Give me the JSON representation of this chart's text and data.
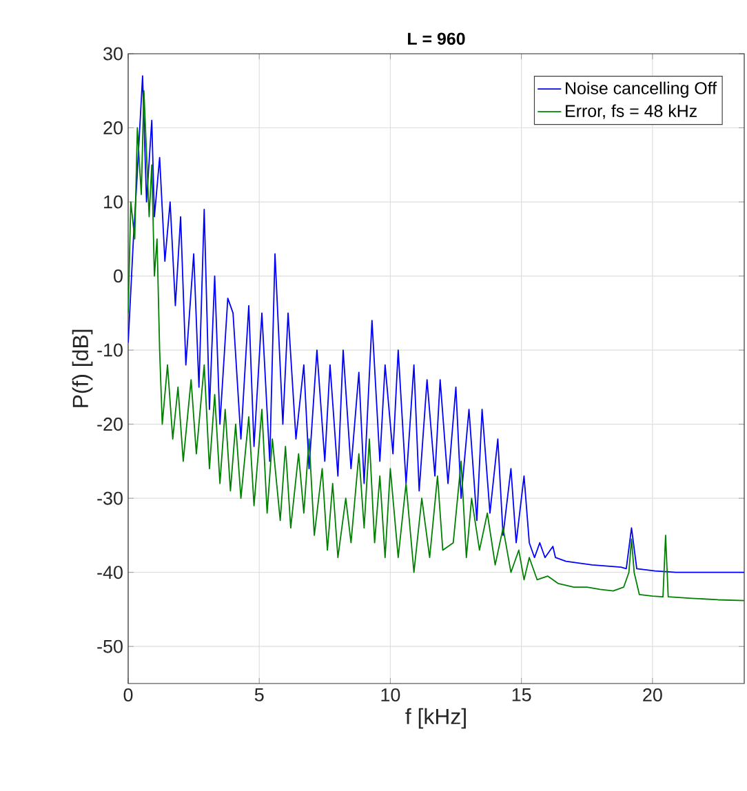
{
  "chart_data": {
    "type": "line",
    "title": "L = 960",
    "xlabel": "f [kHz]",
    "ylabel": "P(f) [dB]",
    "xlim": [
      0,
      23.5
    ],
    "ylim": [
      -55,
      30
    ],
    "xticks": [
      0,
      5,
      10,
      15,
      20
    ],
    "yticks": [
      -50,
      -40,
      -30,
      -20,
      -10,
      0,
      10,
      20,
      30
    ],
    "grid": true,
    "legend": "top right",
    "series": [
      {
        "name": "Noise cancelling Off",
        "color": "#0000ff",
        "x": [
          0,
          0.2,
          0.35,
          0.55,
          0.7,
          0.9,
          1.0,
          1.2,
          1.4,
          1.6,
          1.8,
          2.0,
          2.2,
          2.5,
          2.7,
          2.9,
          3.1,
          3.3,
          3.5,
          3.8,
          4.0,
          4.3,
          4.6,
          4.8,
          5.1,
          5.4,
          5.6,
          5.9,
          6.1,
          6.4,
          6.7,
          6.9,
          7.2,
          7.5,
          7.7,
          8.0,
          8.2,
          8.5,
          8.8,
          9.0,
          9.3,
          9.6,
          9.8,
          10.1,
          10.3,
          10.6,
          10.9,
          11.1,
          11.4,
          11.7,
          11.9,
          12.2,
          12.5,
          12.7,
          13.0,
          13.3,
          13.5,
          13.8,
          14.1,
          14.3,
          14.6,
          14.8,
          15.1,
          15.3,
          15.5,
          15.7,
          15.9,
          16.2,
          16.3,
          16.7,
          17.7,
          18.8,
          19.0,
          19.2,
          19.4,
          20.1,
          20.9,
          22.5,
          23.5
        ],
        "values": [
          -9,
          5,
          14,
          27,
          10,
          21,
          8,
          16,
          2,
          10,
          -4,
          8,
          -12,
          3,
          -15,
          9,
          -18,
          0,
          -20,
          -3,
          -5,
          -22,
          -4,
          -23,
          -5,
          -25,
          3,
          -20,
          -5,
          -22,
          -12,
          -26,
          -10,
          -25,
          -12,
          -27,
          -10,
          -26,
          -13,
          -28,
          -6,
          -25,
          -12,
          -24,
          -10,
          -28,
          -12,
          -29,
          -14,
          -27,
          -14,
          -28,
          -15,
          -30,
          -18,
          -33,
          -18,
          -32,
          -22,
          -35,
          -26,
          -36,
          -27,
          -36,
          -38,
          -36,
          -38,
          -36.5,
          -38,
          -38.5,
          -39,
          -39.3,
          -39.5,
          -34,
          -39.5,
          -39.8,
          -40,
          -40,
          -40
        ]
      },
      {
        "name": "Error, fs = 48 kHz",
        "color": "#008000",
        "x": [
          0,
          0.1,
          0.25,
          0.35,
          0.5,
          0.6,
          0.8,
          0.9,
          1.0,
          1.1,
          1.2,
          1.3,
          1.5,
          1.7,
          1.9,
          2.1,
          2.4,
          2.6,
          2.9,
          3.1,
          3.3,
          3.5,
          3.7,
          3.9,
          4.1,
          4.3,
          4.6,
          4.8,
          5.1,
          5.3,
          5.5,
          5.8,
          6.0,
          6.2,
          6.5,
          6.7,
          6.9,
          7.1,
          7.4,
          7.6,
          7.8,
          8.0,
          8.3,
          8.5,
          8.8,
          9.0,
          9.2,
          9.4,
          9.6,
          9.8,
          10.0,
          10.3,
          10.6,
          10.9,
          11.2,
          11.5,
          11.8,
          12.0,
          12.4,
          12.7,
          12.9,
          13.1,
          13.4,
          13.7,
          14.0,
          14.3,
          14.6,
          14.9,
          15.1,
          15.3,
          15.6,
          16.0,
          16.4,
          17.0,
          17.5,
          18.0,
          18.5,
          18.9,
          19.1,
          19.2,
          19.3,
          19.5,
          20.0,
          20.4,
          20.5,
          20.6,
          21.5,
          22.5,
          23.5
        ],
        "values": [
          -5,
          10,
          5,
          20,
          11,
          25,
          8,
          15,
          0,
          5,
          -10,
          -20,
          -12,
          -22,
          -15,
          -25,
          -14,
          -24,
          -12,
          -26,
          -16,
          -28,
          -18,
          -29,
          -20,
          -30,
          -19,
          -31,
          -18,
          -32,
          -22,
          -33,
          -23,
          -34,
          -24,
          -32,
          -22,
          -35,
          -26,
          -37,
          -28,
          -38,
          -30,
          -36,
          -24,
          -34,
          -22,
          -36,
          -27,
          -38,
          -26,
          -38,
          -28,
          -40,
          -30,
          -38,
          -27,
          -37,
          -36,
          -25,
          -38,
          -30,
          -37,
          -32,
          -39,
          -34,
          -40,
          -37,
          -41,
          -38,
          -41,
          -40.5,
          -41.5,
          -42,
          -42,
          -42.3,
          -42.5,
          -42,
          -40,
          -35.5,
          -40,
          -43,
          -43.2,
          -43.3,
          -35,
          -43.3,
          -43.5,
          -43.7,
          -43.8
        ]
      }
    ]
  }
}
